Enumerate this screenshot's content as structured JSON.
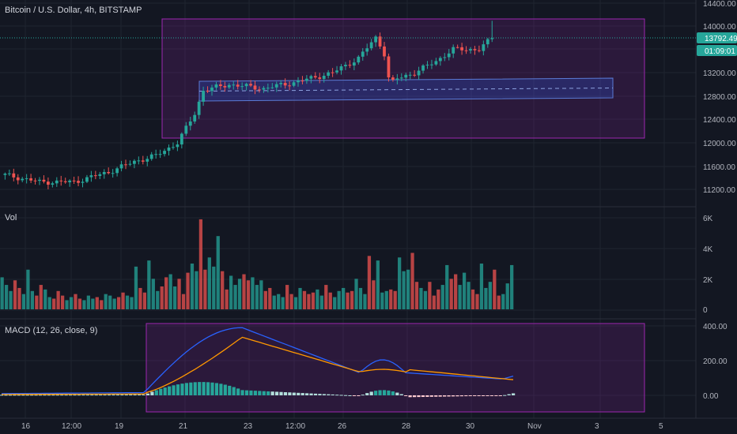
{
  "header": {
    "title": "Bitcoin / U.S. Dollar, 4h, BITSTAMP"
  },
  "price_axis": {
    "ticks": [
      "14400.00",
      "14000.00",
      "13600.00",
      "13200.00",
      "12800.00",
      "12400.00",
      "12000.00",
      "11600.00",
      "11200.00"
    ],
    "last_price_label": "13792.49",
    "countdown_label": "01:09:01"
  },
  "volume_pane": {
    "label": "Vol",
    "ticks": [
      "6K",
      "4K",
      "2K",
      "0"
    ]
  },
  "macd_pane": {
    "label": "MACD (12, 26, close, 9)",
    "ticks": [
      "400.00",
      "200.00",
      "0.00"
    ]
  },
  "time_axis": {
    "labels": [
      "16",
      "12:00",
      "19",
      "21",
      "23",
      "12:00",
      "26",
      "28",
      "30",
      "Nov",
      "3",
      "5"
    ]
  },
  "colors": {
    "background": "#131722",
    "up": "#26a69a",
    "down": "#ef5350",
    "last_price": "#26a69a",
    "box_fill": "#9c27b0",
    "box_border": "#9c27b0",
    "channel": "#2962ff",
    "macd_line": "#2962ff",
    "signal_line": "#ff9800"
  },
  "chart_data": {
    "type": "candlestick",
    "price_range": [
      11100,
      14500
    ],
    "last_price": 13792.49,
    "start_price": 11450,
    "candles_note": "approximate 4h BTC/USD candles between Oct 15 and Oct 31",
    "anchors": [
      {
        "i": 0,
        "p": 11450
      },
      {
        "i": 8,
        "p": 11330
      },
      {
        "i": 16,
        "p": 11330
      },
      {
        "i": 24,
        "p": 11500
      },
      {
        "i": 30,
        "p": 11680
      },
      {
        "i": 35,
        "p": 11780
      },
      {
        "i": 40,
        "p": 12000
      },
      {
        "i": 44,
        "p": 12500
      },
      {
        "i": 46,
        "p": 12900
      },
      {
        "i": 52,
        "p": 13000
      },
      {
        "i": 60,
        "p": 12930
      },
      {
        "i": 68,
        "p": 13050
      },
      {
        "i": 76,
        "p": 13200
      },
      {
        "i": 82,
        "p": 13450
      },
      {
        "i": 86,
        "p": 13800
      },
      {
        "i": 89,
        "p": 13500
      },
      {
        "i": 91,
        "p": 13100
      },
      {
        "i": 95,
        "p": 13200
      },
      {
        "i": 100,
        "p": 13400
      },
      {
        "i": 104,
        "p": 13600
      },
      {
        "i": 110,
        "p": 13600
      },
      {
        "i": 113,
        "p": 13792
      }
    ],
    "volumes": [
      2.1,
      1.6,
      1.2,
      1.9,
      1.4,
      1.0,
      2.6,
      1.2,
      0.9,
      1.6,
      1.3,
      0.8,
      0.7,
      1.2,
      0.9,
      0.6,
      0.8,
      1.0,
      0.7,
      0.6,
      0.9,
      0.7,
      0.8,
      0.6,
      1.0,
      0.9,
      0.7,
      0.8,
      1.1,
      0.9,
      0.8,
      2.8,
      1.4,
      1.1,
      3.2,
      2.0,
      1.2,
      1.5,
      2.1,
      2.3,
      1.5,
      2.0,
      1.0,
      2.4,
      3.0,
      2.5,
      5.9,
      2.6,
      3.4,
      2.8,
      4.8,
      2.5,
      1.3,
      2.2,
      1.6,
      2.0,
      2.3,
      1.9,
      2.1,
      1.6,
      1.9,
      1.2,
      1.4,
      0.9,
      1.0,
      0.8,
      1.6,
      1.0,
      0.8,
      1.4,
      1.2,
      1.0,
      1.1,
      1.3,
      0.9,
      1.6,
      1.1,
      0.8,
      1.2,
      1.4,
      1.1,
      1.2,
      2.0,
      1.4,
      1.0,
      3.5,
      1.9,
      3.2,
      1.1,
      1.2,
      1.3,
      1.2,
      3.4,
      2.5,
      2.6,
      3.7,
      1.8,
      1.4,
      1.2,
      1.8,
      0.9,
      1.3,
      1.6,
      2.9,
      2.0,
      2.3,
      1.6,
      2.4,
      1.8,
      1.3,
      1.0,
      3.0,
      1.4,
      1.8,
      2.6,
      0.9,
      1.0,
      1.7,
      2.9
    ],
    "macd_range": [
      -80,
      420
    ]
  }
}
